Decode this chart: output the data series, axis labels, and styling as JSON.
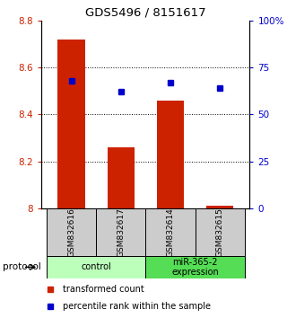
{
  "title": "GDS5496 / 8151617",
  "samples": [
    "GSM832616",
    "GSM832617",
    "GSM832614",
    "GSM832615"
  ],
  "bar_values": [
    8.72,
    8.26,
    8.46,
    8.01
  ],
  "percentile_values": [
    68,
    62,
    67,
    64
  ],
  "ylim_left": [
    8.0,
    8.8
  ],
  "ylim_right": [
    0,
    100
  ],
  "yticks_left": [
    8.0,
    8.2,
    8.4,
    8.6,
    8.8
  ],
  "yticks_right": [
    0,
    25,
    50,
    75,
    100
  ],
  "ytick_labels_left": [
    "8",
    "8.2",
    "8.4",
    "8.6",
    "8.8"
  ],
  "ytick_labels_right": [
    "0",
    "25",
    "50",
    "75",
    "100%"
  ],
  "bar_color": "#cc2200",
  "marker_color": "#0000cc",
  "grid_color": "#888888",
  "groups": [
    {
      "label": "control",
      "indices": [
        0,
        1
      ],
      "color": "#bbffbb"
    },
    {
      "label": "miR-365-2\nexpression",
      "indices": [
        2,
        3
      ],
      "color": "#55dd55"
    }
  ],
  "legend_bar_label": "transformed count",
  "legend_marker_label": "percentile rank within the sample",
  "protocol_label": "protocol",
  "ylabel_left_color": "#cc2200",
  "ylabel_right_color": "#0000cc",
  "sample_box_color": "#cccccc",
  "bar_width": 0.55
}
